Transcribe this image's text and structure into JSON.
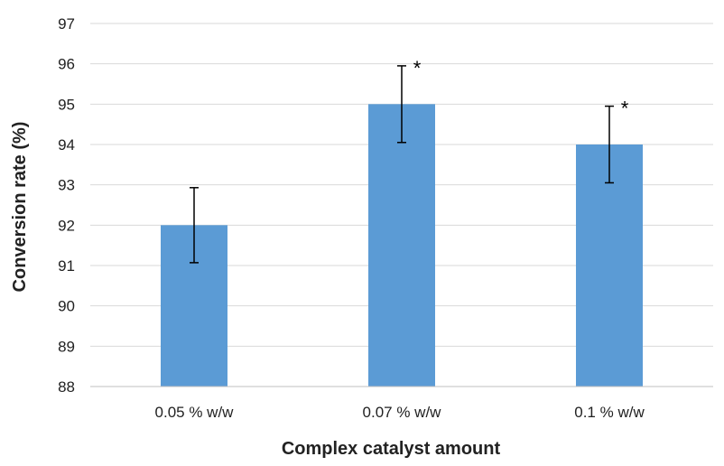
{
  "chart_data": {
    "type": "bar",
    "categories": [
      "0.05 % w/w",
      "0.07 % w/w",
      "0.1 % w/w"
    ],
    "values": [
      92,
      95,
      94
    ],
    "error_bars": [
      0.93,
      0.95,
      0.95
    ],
    "annotations": [
      "",
      "*",
      "*"
    ],
    "xlabel": "Complex catalyst amount",
    "ylabel": "Conversion rate (%)",
    "ylim": [
      88,
      97
    ],
    "yticks": [
      88,
      89,
      90,
      91,
      92,
      93,
      94,
      95,
      96,
      97
    ],
    "grid": true,
    "legend": "none",
    "colors": {
      "bar": "#5b9bd5",
      "grid": "#d9d9d9",
      "axis": "#bfbfbf",
      "error_bar": "#000000",
      "text": "#222222"
    }
  }
}
